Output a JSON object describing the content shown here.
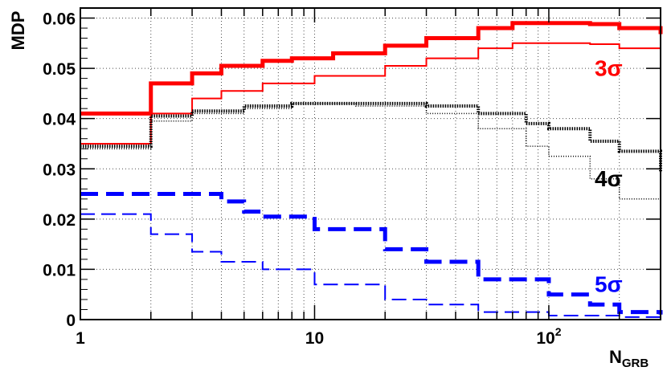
{
  "chart_data": {
    "type": "line",
    "ylabel": "MDP",
    "xlabel_main": "N",
    "xlabel_sub": "GRB",
    "xscale": "log",
    "xlim": [
      1,
      300
    ],
    "ylim": [
      0,
      0.062
    ],
    "grid": true,
    "yticks": [
      {
        "value": 0,
        "label": "0"
      },
      {
        "value": 0.01,
        "label": "0.01"
      },
      {
        "value": 0.02,
        "label": "0.02"
      },
      {
        "value": 0.03,
        "label": "0.03"
      },
      {
        "value": 0.04,
        "label": "0.04"
      },
      {
        "value": 0.05,
        "label": "0.05"
      },
      {
        "value": 0.06,
        "label": "0.06"
      }
    ],
    "xticks": [
      {
        "value": 1,
        "label": "1"
      },
      {
        "value": 10,
        "label": "10"
      },
      {
        "value": 100,
        "label": "10",
        "sup": "2"
      }
    ],
    "series": [
      {
        "id": "3sigma_thick",
        "color": "#ff0000",
        "style": "solid",
        "width": 5,
        "points": [
          [
            1,
            0.041
          ],
          [
            2,
            0.047
          ],
          [
            3,
            0.049
          ],
          [
            4,
            0.0505
          ],
          [
            6,
            0.0515
          ],
          [
            8,
            0.052
          ],
          [
            12,
            0.053
          ],
          [
            20,
            0.0545
          ],
          [
            30,
            0.056
          ],
          [
            50,
            0.058
          ],
          [
            70,
            0.059
          ],
          [
            100,
            0.059
          ],
          [
            150,
            0.0588
          ],
          [
            200,
            0.058
          ],
          [
            300,
            0.0568
          ]
        ]
      },
      {
        "id": "3sigma_thin",
        "color": "#ff0000",
        "style": "solid",
        "width": 2,
        "points": [
          [
            1,
            0.035
          ],
          [
            2,
            0.041
          ],
          [
            3,
            0.044
          ],
          [
            4,
            0.0455
          ],
          [
            6,
            0.047
          ],
          [
            10,
            0.0485
          ],
          [
            20,
            0.0505
          ],
          [
            30,
            0.052
          ],
          [
            50,
            0.054
          ],
          [
            70,
            0.055
          ],
          [
            100,
            0.055
          ],
          [
            150,
            0.0548
          ],
          [
            200,
            0.054
          ],
          [
            300,
            0.053
          ]
        ]
      },
      {
        "id": "4sigma_thick",
        "color": "#000000",
        "style": "dotted",
        "width": 4,
        "points": [
          [
            1,
            0.0345
          ],
          [
            2,
            0.0405
          ],
          [
            3,
            0.0415
          ],
          [
            5,
            0.0425
          ],
          [
            8,
            0.043
          ],
          [
            15,
            0.043
          ],
          [
            30,
            0.0425
          ],
          [
            50,
            0.041
          ],
          [
            80,
            0.039
          ],
          [
            100,
            0.038
          ],
          [
            150,
            0.0355
          ],
          [
            200,
            0.0335
          ],
          [
            300,
            0.0295
          ]
        ]
      },
      {
        "id": "4sigma_thin",
        "color": "#000000",
        "style": "dotted",
        "width": 1.5,
        "points": [
          [
            1,
            0.034
          ],
          [
            2,
            0.0395
          ],
          [
            3,
            0.041
          ],
          [
            5,
            0.042
          ],
          [
            8,
            0.043
          ],
          [
            15,
            0.0425
          ],
          [
            30,
            0.041
          ],
          [
            50,
            0.038
          ],
          [
            80,
            0.0345
          ],
          [
            100,
            0.0325
          ],
          [
            150,
            0.028
          ],
          [
            200,
            0.024
          ],
          [
            300,
            0.019
          ]
        ]
      },
      {
        "id": "5sigma_thick",
        "color": "#0000ff",
        "style": "dashed",
        "width": 5,
        "points": [
          [
            1,
            0.025
          ],
          [
            3,
            0.025
          ],
          [
            4,
            0.0235
          ],
          [
            5,
            0.0215
          ],
          [
            6,
            0.0205
          ],
          [
            10,
            0.018
          ],
          [
            20,
            0.014
          ],
          [
            30,
            0.0115
          ],
          [
            50,
            0.008
          ],
          [
            100,
            0.005
          ],
          [
            150,
            0.003
          ],
          [
            200,
            0.0015
          ],
          [
            300,
            0.001
          ]
        ]
      },
      {
        "id": "5sigma_thin",
        "color": "#0000ff",
        "style": "dashed",
        "width": 2,
        "points": [
          [
            1,
            0.021
          ],
          [
            2,
            0.017
          ],
          [
            3,
            0.0135
          ],
          [
            4,
            0.0115
          ],
          [
            6,
            0.01
          ],
          [
            10,
            0.007
          ],
          [
            20,
            0.004
          ],
          [
            30,
            0.003
          ],
          [
            50,
            0.0015
          ],
          [
            100,
            0.0008
          ],
          [
            200,
            0.0005
          ],
          [
            300,
            0.0005
          ]
        ]
      }
    ],
    "annotations": [
      {
        "text": "3σ",
        "color": "#ff0000",
        "x": 180,
        "y": 0.0485
      },
      {
        "text": "4σ",
        "color": "#000000",
        "x": 180,
        "y": 0.0265
      },
      {
        "text": "5σ",
        "color": "#0000ff",
        "x": 180,
        "y": 0.0055
      }
    ]
  }
}
